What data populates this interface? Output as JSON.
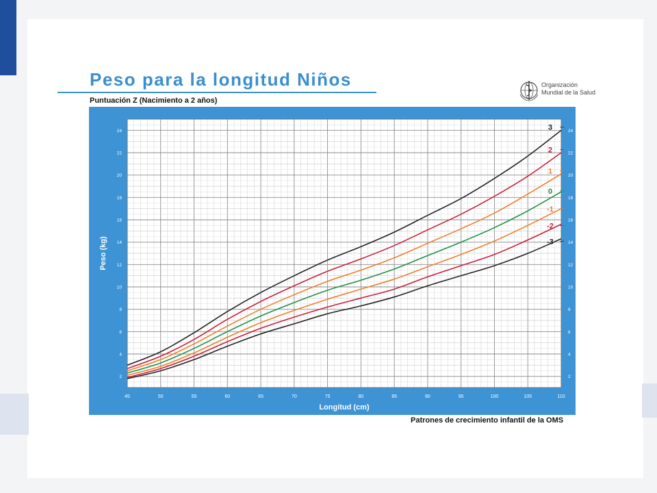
{
  "header": {
    "title": "Peso para la longitud Niños",
    "subtitle": "Puntuación Z (Nacimiento a 2 años)"
  },
  "logo": {
    "line1": "Organización",
    "line2": "Mundial de la Salud"
  },
  "footer": {
    "source": "Patrones de crecimiento infantil de la OMS"
  },
  "colors": {
    "accent": "#3a8fd0",
    "panel": "#3d93d4",
    "plot_bg": "#ffffff"
  },
  "chart_data": {
    "type": "line",
    "title": "Peso para la longitud Niños",
    "subtitle": "Puntuación Z (Nacimiento a 2 años)",
    "xlabel": "Longitud (cm)",
    "ylabel": "Peso (kg)",
    "xlim": [
      45,
      110
    ],
    "ylim": [
      1,
      25
    ],
    "xticks": [
      45,
      50,
      55,
      60,
      65,
      70,
      75,
      80,
      85,
      90,
      95,
      100,
      105,
      110
    ],
    "yticks": [
      2,
      4,
      6,
      8,
      10,
      12,
      14,
      16,
      18,
      20,
      22,
      24
    ],
    "grid": true,
    "x": [
      45,
      50,
      55,
      60,
      65,
      70,
      75,
      80,
      85,
      90,
      95,
      100,
      105,
      110
    ],
    "series": [
      {
        "name": "3",
        "color": "#222222",
        "values": [
          3.0,
          4.2,
          5.9,
          7.8,
          9.5,
          11.0,
          12.4,
          13.6,
          14.9,
          16.4,
          17.9,
          19.7,
          21.7,
          24.0
        ]
      },
      {
        "name": "2",
        "color": "#c8203b",
        "values": [
          2.7,
          3.8,
          5.3,
          7.1,
          8.7,
          10.1,
          11.4,
          12.5,
          13.7,
          15.1,
          16.5,
          18.1,
          19.9,
          22.0
        ]
      },
      {
        "name": "1",
        "color": "#f07e2b",
        "values": [
          2.5,
          3.5,
          4.9,
          6.5,
          8.0,
          9.3,
          10.5,
          11.5,
          12.6,
          13.9,
          15.2,
          16.6,
          18.3,
          20.1
        ]
      },
      {
        "name": "0",
        "color": "#1e9146",
        "values": [
          2.3,
          3.2,
          4.5,
          6.0,
          7.4,
          8.6,
          9.7,
          10.6,
          11.6,
          12.8,
          14.0,
          15.3,
          16.8,
          18.5
        ]
      },
      {
        "name": "-1",
        "color": "#f07e2b",
        "values": [
          2.1,
          2.9,
          4.1,
          5.5,
          6.8,
          7.9,
          8.9,
          9.8,
          10.7,
          11.8,
          12.9,
          14.1,
          15.5,
          17.0
        ]
      },
      {
        "name": "-2",
        "color": "#c8203b",
        "values": [
          1.9,
          2.7,
          3.8,
          5.1,
          6.3,
          7.3,
          8.2,
          9.0,
          9.8,
          10.9,
          11.9,
          12.9,
          14.2,
          15.6
        ]
      },
      {
        "name": "-3",
        "color": "#222222",
        "values": [
          1.8,
          2.5,
          3.5,
          4.7,
          5.8,
          6.7,
          7.6,
          8.3,
          9.1,
          10.1,
          11.0,
          11.9,
          13.0,
          14.3
        ]
      }
    ]
  }
}
